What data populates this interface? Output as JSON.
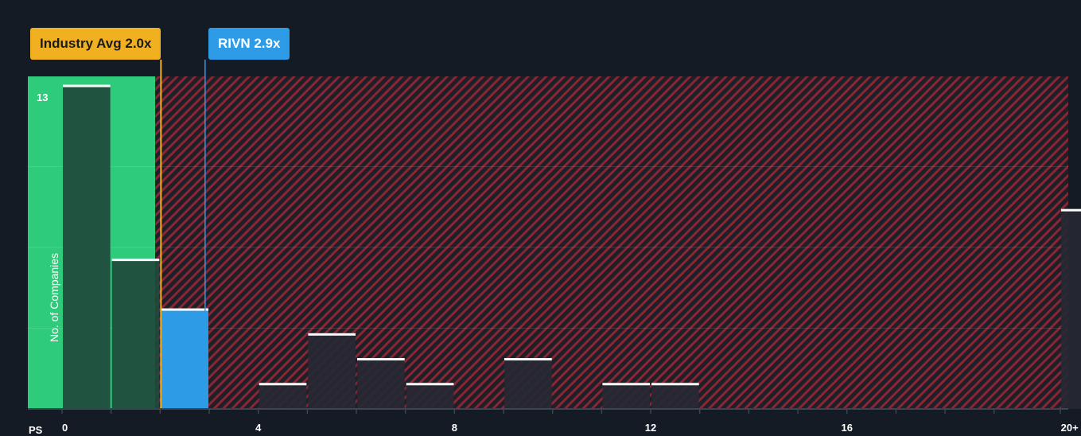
{
  "callouts": {
    "industry_avg": "Industry Avg 2.0x",
    "company": "RIVN 2.9x"
  },
  "colors": {
    "background": "#151b24",
    "fair_zone": "#2ecc7a",
    "overvalued_zone": "#7a1f2e",
    "company_bar": "#2e9be6",
    "avg_line": "#f0b020",
    "bar_cap": "#ffffff"
  },
  "chart_data": {
    "type": "bar",
    "xlabel_prefix": "PS",
    "ylabel": "No. of Companies",
    "y_max_label": "13",
    "ylim": [
      0,
      13
    ],
    "grid": true,
    "x_ticks": [
      "0",
      "4",
      "8",
      "12",
      "16",
      "20+"
    ],
    "bins": [
      {
        "from": 0,
        "to": 1,
        "count": 13
      },
      {
        "from": 1,
        "to": 2,
        "count": 6
      },
      {
        "from": 2,
        "to": 3,
        "count": 4,
        "highlight": "company"
      },
      {
        "from": 3,
        "to": 4,
        "count": 0
      },
      {
        "from": 4,
        "to": 5,
        "count": 1
      },
      {
        "from": 5,
        "to": 6,
        "count": 3
      },
      {
        "from": 6,
        "to": 7,
        "count": 2
      },
      {
        "from": 7,
        "to": 8,
        "count": 1
      },
      {
        "from": 8,
        "to": 9,
        "count": 0
      },
      {
        "from": 9,
        "to": 10,
        "count": 2
      },
      {
        "from": 10,
        "to": 11,
        "count": 0
      },
      {
        "from": 11,
        "to": 12,
        "count": 1
      },
      {
        "from": 12,
        "to": 13,
        "count": 1
      },
      {
        "from": 20,
        "to": 21,
        "count": 8
      }
    ],
    "industry_avg": 2.0,
    "company_value": 2.9
  }
}
